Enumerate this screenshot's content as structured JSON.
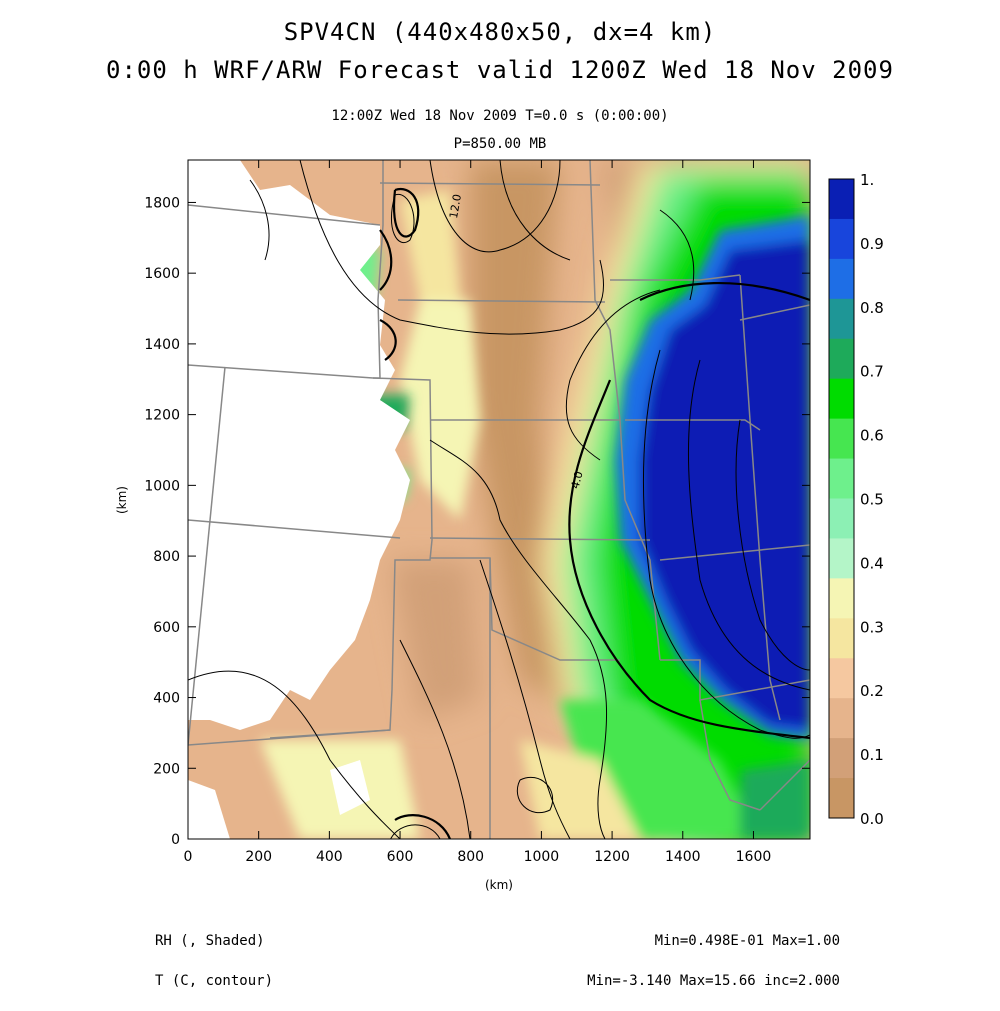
{
  "header": {
    "title_line1": "SPV4CN (440x480x50, dx=4 km)",
    "title_line2": "0:00 h WRF/ARW Forecast valid 1200Z Wed 18 Nov 2009",
    "subtitle_time": "12:00Z Wed 18 Nov 2009    T=0.0 s (0:00:00)",
    "subtitle_level": "P=850.00 MB"
  },
  "axes": {
    "x_label": "(km)",
    "y_label": "(km)",
    "x_ticks": [
      "0",
      "200",
      "400",
      "600",
      "800",
      "1000",
      "1200",
      "1400",
      "1600"
    ],
    "y_ticks": [
      "0",
      "200",
      "400",
      "600",
      "800",
      "1000",
      "1200",
      "1400",
      "1600",
      "1800"
    ],
    "x_range": [
      0,
      1760
    ],
    "y_range": [
      0,
      1920
    ]
  },
  "colorbar": {
    "labels": [
      "1.",
      "0.9",
      "0.8",
      "0.7",
      "0.6",
      "0.5",
      "0.4",
      "0.3",
      "0.2",
      "0.1",
      "0.0"
    ],
    "colors": [
      "#0a1fb4",
      "#1845dc",
      "#1e6ee6",
      "#1e9696",
      "#1eaa5a",
      "#00dc00",
      "#46e650",
      "#6ef08c",
      "#8cf0b4",
      "#b4f5c8",
      "#f5f5b4",
      "#f5e6a0",
      "#f5c8a0",
      "#e6b48c",
      "#d2a078",
      "#c89664"
    ]
  },
  "contour_labels": {
    "c12": "12.0",
    "c4": "4.0"
  },
  "footer": {
    "left_line1": "RH (, Shaded)",
    "left_line2": "T (C, contour)",
    "right_line1": "Min=0.498E-01 Max=1.00",
    "right_line2": "Min=-3.140 Max=15.66 inc=2.000"
  }
}
